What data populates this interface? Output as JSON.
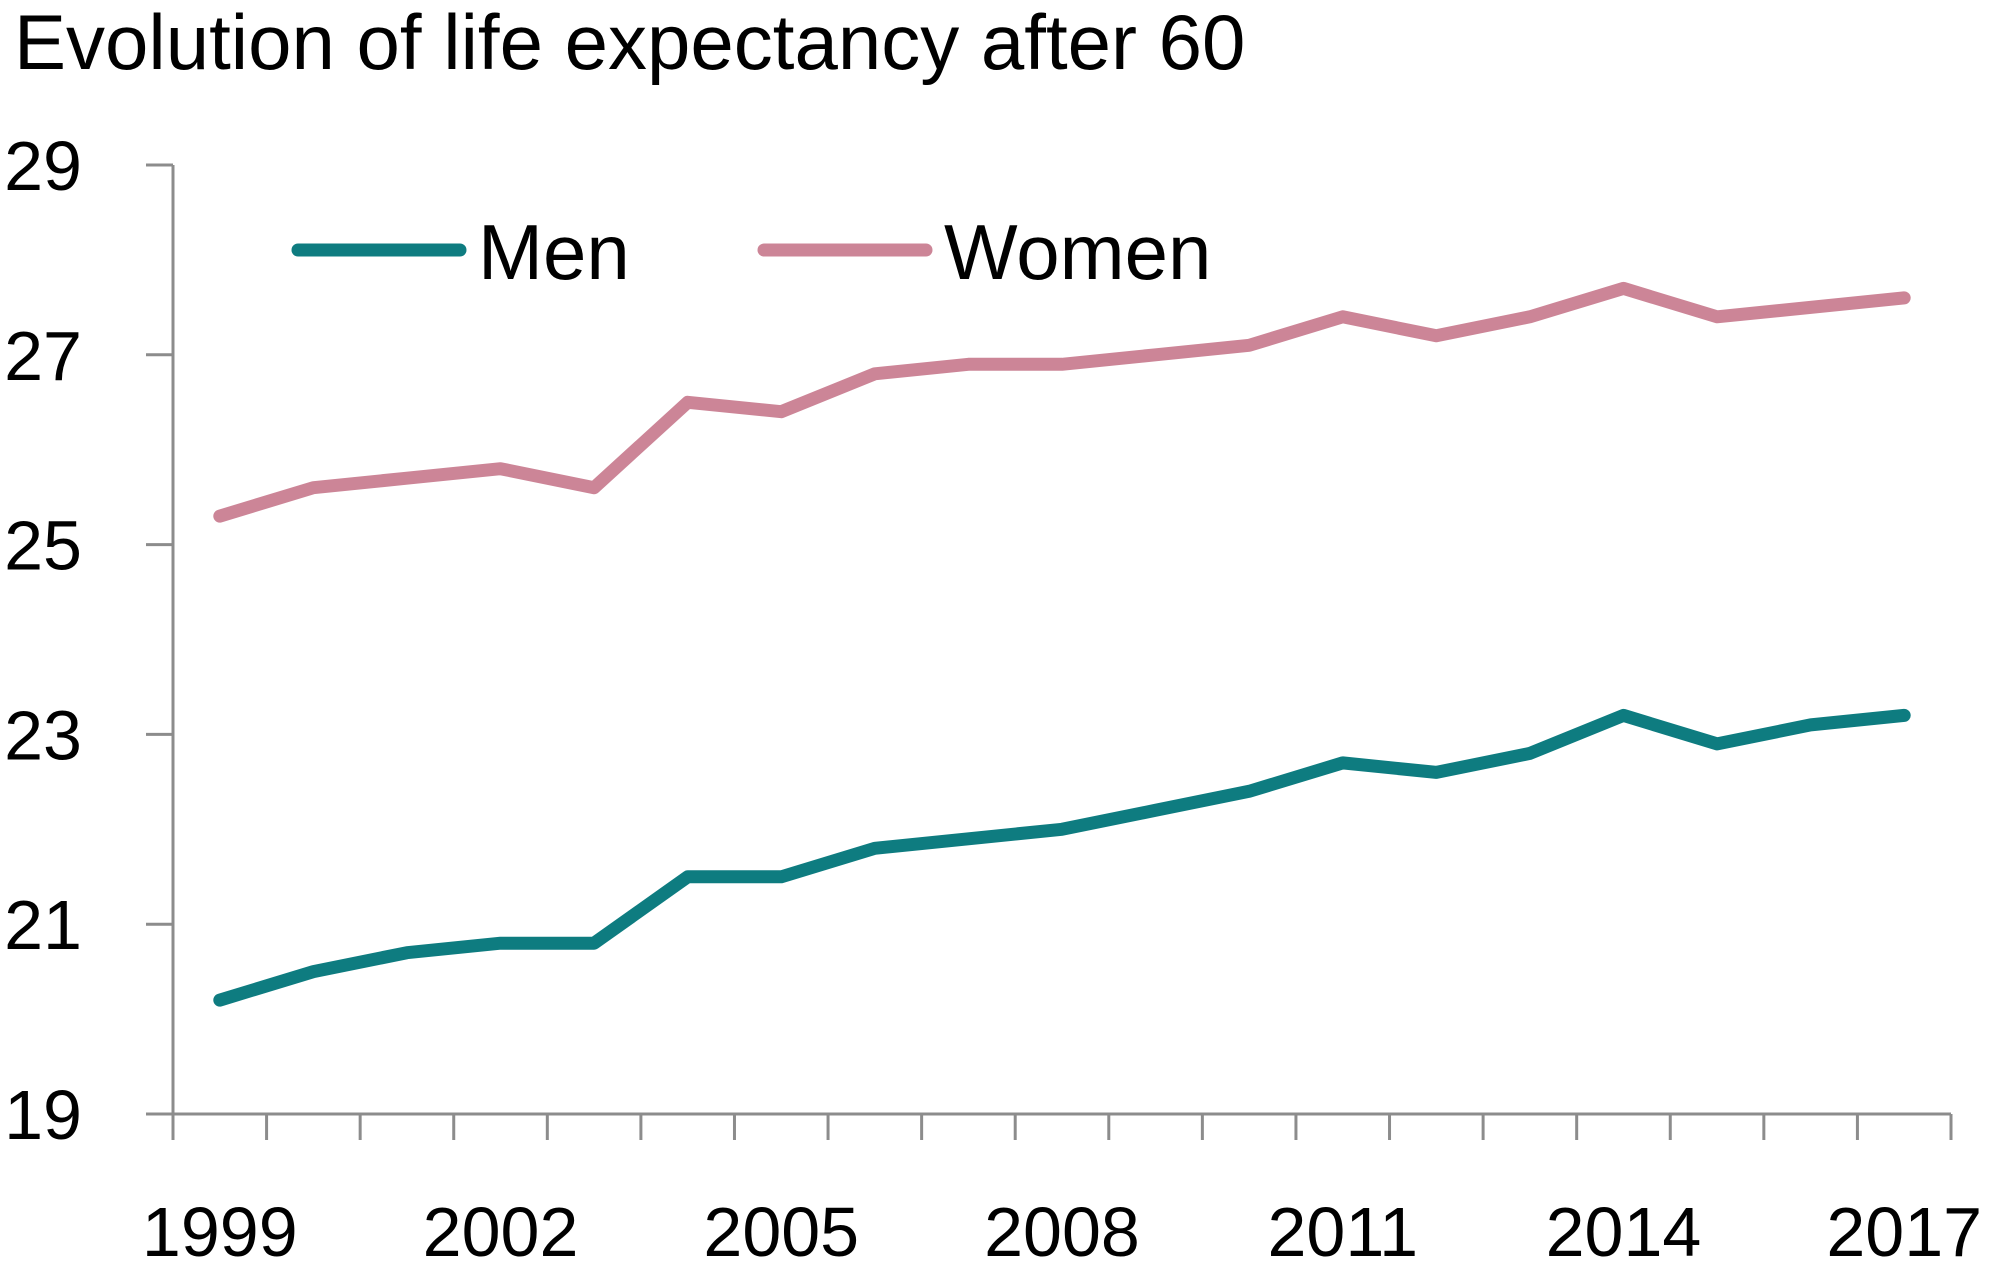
{
  "chart_data": {
    "type": "line",
    "title": "Evolution of  life expectancy after 60",
    "xlabel": "",
    "ylabel": "",
    "x": [
      1999,
      2000,
      2001,
      2002,
      2003,
      2004,
      2005,
      2006,
      2007,
      2008,
      2009,
      2010,
      2011,
      2012,
      2013,
      2014,
      2015,
      2016,
      2017
    ],
    "x_tick_labels": [
      "1999",
      "2002",
      "2005",
      "2008",
      "2011",
      "2014",
      "2017"
    ],
    "y_tick_labels": [
      "19",
      "21",
      "23",
      "25",
      "27",
      "29"
    ],
    "ylim": [
      19,
      29
    ],
    "grid": false,
    "legend_position": "top-left",
    "series": [
      {
        "name": "Men",
        "color": "#0e7c80",
        "values": [
          20.2,
          20.5,
          20.7,
          20.8,
          20.8,
          21.5,
          21.5,
          21.8,
          21.9,
          22.0,
          22.2,
          22.4,
          22.7,
          22.6,
          22.8,
          23.2,
          22.9,
          23.1,
          23.2
        ]
      },
      {
        "name": "Women",
        "color": "#cc8597",
        "values": [
          25.3,
          25.6,
          25.7,
          25.8,
          25.6,
          26.5,
          26.4,
          26.8,
          26.9,
          26.9,
          27.0,
          27.1,
          27.4,
          27.2,
          27.4,
          27.7,
          27.4,
          27.5,
          27.6
        ]
      }
    ]
  }
}
